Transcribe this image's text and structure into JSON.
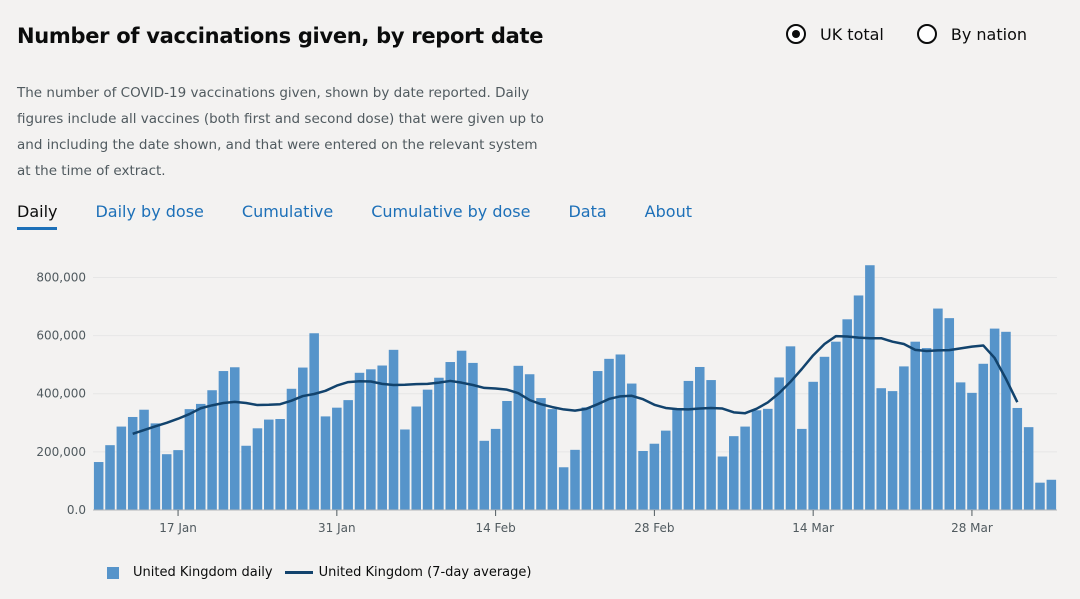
{
  "header": {
    "title": "Number of vaccinations given, by report date",
    "radio_uk": "UK total",
    "radio_nation": "By nation"
  },
  "description": "The number of COVID-19 vaccinations given, shown by date reported. Daily figures include all vaccines (both first and second dose) that were given up to and including the date shown, and that were entered on the relevant system at the time of extract.",
  "tabs": [
    "Daily",
    "Daily by dose",
    "Cumulative",
    "Cumulative by dose",
    "Data",
    "About"
  ],
  "colors": {
    "bar": "#5694ca",
    "line": "#12436d",
    "tab_active": "#1d70b8"
  },
  "chart_data": {
    "type": "bar",
    "x_tick_labels": [
      "17 Jan",
      "31 Jan",
      "14 Feb",
      "28 Feb",
      "14 Mar",
      "28 Mar"
    ],
    "x_tick_indices": [
      7,
      21,
      35,
      49,
      63,
      77
    ],
    "y_ticks": [
      0,
      200000,
      400000,
      600000,
      800000
    ],
    "y_tick_labels": [
      "0.0",
      "200,000",
      "400,000",
      "600,000",
      "800,000"
    ],
    "ylim": [
      0,
      860000
    ],
    "grid": true,
    "legend_position": "bottom",
    "series": [
      {
        "name": "United Kingdom daily",
        "type": "bar",
        "values": [
          165000,
          223000,
          287000,
          320000,
          345000,
          298000,
          192000,
          206000,
          347000,
          365000,
          412000,
          478000,
          491000,
          221000,
          281000,
          311000,
          313000,
          417000,
          490000,
          608000,
          322000,
          352000,
          378000,
          472000,
          484000,
          497000,
          551000,
          277000,
          356000,
          414000,
          455000,
          509000,
          548000,
          506000,
          238000,
          279000,
          375000,
          496000,
          467000,
          385000,
          347000,
          147000,
          207000,
          353000,
          478000,
          520000,
          535000,
          435000,
          203000,
          228000,
          273000,
          347000,
          444000,
          492000,
          447000,
          184000,
          254000,
          287000,
          343000,
          348000,
          456000,
          563000,
          279000,
          441000,
          527000,
          579000,
          656000,
          738000,
          842000,
          419000,
          409000,
          494000,
          579000,
          557000,
          693000,
          660000,
          439000,
          403000,
          503000,
          624000,
          613000,
          351000,
          285000,
          94000,
          104000
        ]
      },
      {
        "name": "United Kingdom (7-day average)",
        "type": "line",
        "values": [
          null,
          null,
          null,
          262000,
          275000,
          288000,
          300000,
          314000,
          330000,
          350000,
          360000,
          368000,
          372000,
          368000,
          361000,
          362000,
          364000,
          376000,
          392000,
          399000,
          410000,
          428000,
          440000,
          443000,
          442000,
          434000,
          430000,
          431000,
          433000,
          434000,
          438000,
          444000,
          438000,
          430000,
          420000,
          418000,
          414000,
          402000,
          378000,
          364000,
          354000,
          346000,
          342000,
          348000,
          364000,
          382000,
          391000,
          393000,
          381000,
          362000,
          351000,
          347000,
          346000,
          349000,
          351000,
          349000,
          336000,
          333000,
          348000,
          370000,
          402000,
          441000,
          485000,
          532000,
          571000,
          598000,
          597000,
          593000,
          591000,
          591000,
          579000,
          571000,
          551000,
          547000,
          549000,
          550000,
          556000,
          562000,
          566000,
          523000,
          451000,
          371000,
          null,
          null,
          null
        ]
      }
    ]
  }
}
